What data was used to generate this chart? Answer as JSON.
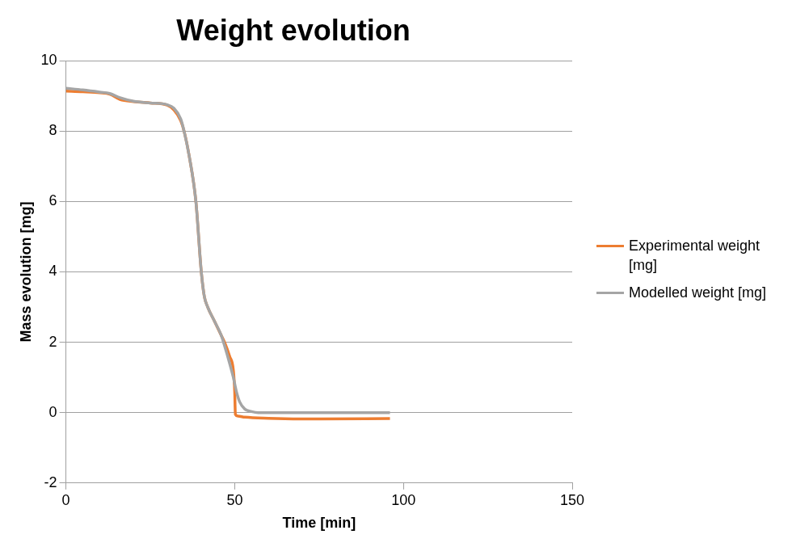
{
  "chart_data": {
    "type": "line",
    "title": "Weight evolution",
    "xlabel": "Time [min]",
    "ylabel": "Mass evolution [mg]",
    "xlim": [
      0,
      150
    ],
    "xticks": [
      0,
      50,
      100,
      150
    ],
    "ylim": [
      -2,
      10
    ],
    "yticks": [
      -2,
      0,
      2,
      4,
      6,
      8,
      10
    ],
    "grid": "y",
    "legend": "right",
    "marker": "none",
    "line_style": "solid",
    "series": [
      {
        "name": "Experimental weight [mg]",
        "color": "#ed7d31",
        "x": [
          0,
          5,
          10,
          13,
          16,
          20,
          25,
          30,
          32,
          34,
          35,
          36.5,
          38.5,
          40.1,
          41,
          42,
          44,
          46,
          47,
          48.5,
          49.6,
          50,
          50.2,
          51,
          53,
          60,
          75,
          96
        ],
        "values": [
          9.14,
          9.12,
          9.09,
          9.05,
          8.9,
          8.84,
          8.8,
          8.74,
          8.6,
          8.3,
          8,
          7.3,
          6,
          4,
          3.3,
          3,
          2.6,
          2.2,
          2,
          1.6,
          1.2,
          0.6,
          -0.05,
          -0.1,
          -0.13,
          -0.16,
          -0.18,
          -0.17
        ]
      },
      {
        "name": "Modelled weight [mg]",
        "color": "#a5a5a5",
        "x": [
          0,
          5,
          10,
          13,
          16,
          20,
          25,
          30,
          32,
          34,
          35,
          36.5,
          38.5,
          40.1,
          41,
          42,
          44,
          46,
          47,
          48.5,
          49.6,
          50.5,
          51.5,
          53,
          55,
          57,
          75,
          96
        ],
        "values": [
          9.22,
          9.17,
          9.11,
          9.07,
          8.95,
          8.85,
          8.8,
          8.75,
          8.65,
          8.35,
          8,
          7.3,
          6,
          4,
          3.3,
          3,
          2.6,
          2.2,
          1.9,
          1.4,
          1,
          0.6,
          0.3,
          0.1,
          0.03,
          0,
          0,
          0
        ]
      }
    ]
  }
}
